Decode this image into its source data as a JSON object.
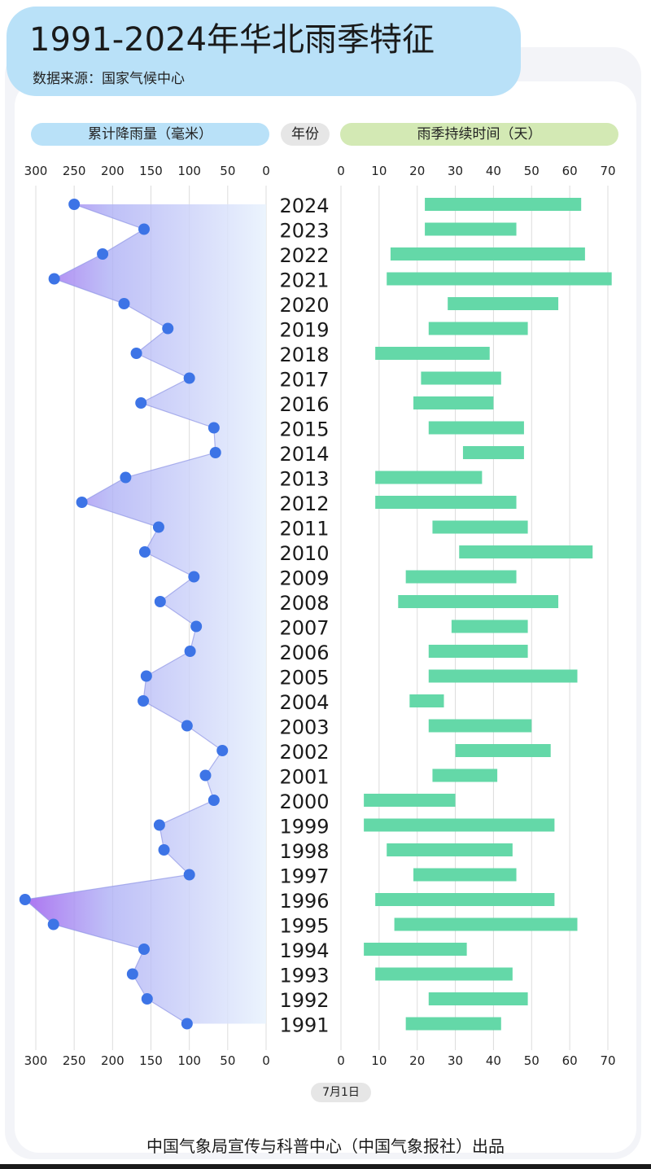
{
  "title": "1991-2024年华北雨季特征",
  "source": "数据来源：国家气候中心",
  "headers": {
    "rainfall": "累计降雨量（毫米）",
    "year": "年份",
    "duration": "雨季持续时间（天）"
  },
  "start_date_label": "7月1日",
  "footer": "中国气象局宣传与科普中心（中国气象报社）出品",
  "colors": {
    "title_bg": "#b9e1f8",
    "duration_pill_bg": "#d3e9b4",
    "point": "#3d74e6",
    "area_dark": "#b07ef0",
    "area_light": "#e8f2fd",
    "bar": "#64d8a8"
  },
  "chart_data": [
    {
      "type": "area",
      "orientation": "horizontal-reversed",
      "title": "累计降雨量（毫米）",
      "xlabel": "累计降雨量（毫米）",
      "xlim": [
        0,
        300
      ],
      "xticks": [
        300,
        250,
        200,
        150,
        100,
        50,
        0
      ],
      "grid": true,
      "categories": [
        "2024",
        "2023",
        "2022",
        "2021",
        "2020",
        "2019",
        "2018",
        "2017",
        "2016",
        "2015",
        "2014",
        "2013",
        "2012",
        "2011",
        "2010",
        "2009",
        "2008",
        "2007",
        "2006",
        "2005",
        "2004",
        "2003",
        "2002",
        "2001",
        "2000",
        "1999",
        "1998",
        "1997",
        "1996",
        "1995",
        "1994",
        "1993",
        "1992",
        "1991"
      ],
      "values": [
        250,
        159,
        213,
        276,
        185,
        128,
        169,
        100,
        163,
        68,
        66,
        183,
        240,
        140,
        158,
        94,
        138,
        91,
        99,
        156,
        160,
        103,
        57,
        79,
        68,
        139,
        133,
        100,
        314,
        277,
        159,
        174,
        155,
        103
      ]
    },
    {
      "type": "bar",
      "orientation": "horizontal-floating",
      "title": "雨季持续时间（天）",
      "xlabel": "雨季持续时间（天）",
      "xlim": [
        0,
        70
      ],
      "xticks": [
        0,
        10,
        20,
        30,
        40,
        50,
        60,
        70
      ],
      "zero_label": "7月1日",
      "grid": true,
      "categories": [
        "2024",
        "2023",
        "2022",
        "2021",
        "2020",
        "2019",
        "2018",
        "2017",
        "2016",
        "2015",
        "2014",
        "2013",
        "2012",
        "2011",
        "2010",
        "2009",
        "2008",
        "2007",
        "2006",
        "2005",
        "2004",
        "2003",
        "2002",
        "2001",
        "2000",
        "1999",
        "1998",
        "1997",
        "1996",
        "1995",
        "1994",
        "1993",
        "1992",
        "1991"
      ],
      "start": [
        22,
        22,
        13,
        12,
        28,
        23,
        9,
        21,
        19,
        23,
        32,
        9,
        9,
        24,
        31,
        17,
        15,
        29,
        23,
        23,
        18,
        23,
        30,
        24,
        6,
        6,
        12,
        19,
        9,
        14,
        6,
        9,
        23,
        17
      ],
      "end": [
        63,
        46,
        64,
        71,
        57,
        49,
        39,
        42,
        40,
        48,
        48,
        37,
        46,
        49,
        66,
        46,
        57,
        49,
        49,
        62,
        27,
        50,
        55,
        41,
        30,
        56,
        45,
        46,
        56,
        62,
        33,
        45,
        49,
        42
      ]
    }
  ]
}
